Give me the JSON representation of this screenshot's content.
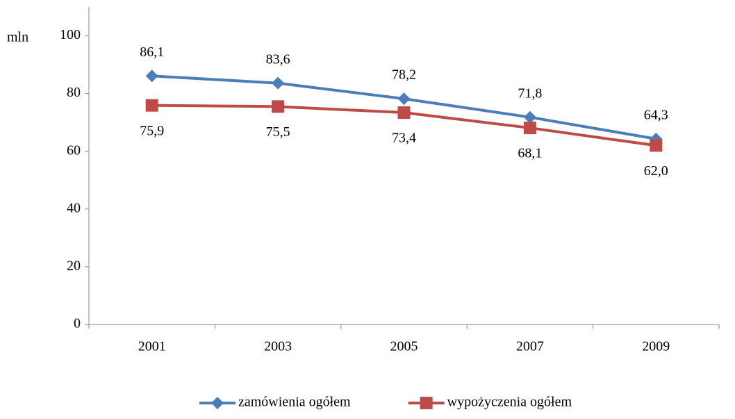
{
  "chart_data": {
    "type": "line",
    "y_label": "mln",
    "categories": [
      "2001",
      "2003",
      "2005",
      "2007",
      "2009"
    ],
    "series": [
      {
        "name": "zamówienia ogółem",
        "color": "#4a7ebb",
        "marker": "diamond",
        "values": [
          86.1,
          83.6,
          78.2,
          71.8,
          64.3
        ],
        "value_labels": [
          "86,1",
          "83,6",
          "78,2",
          "71,8",
          "64,3"
        ]
      },
      {
        "name": "wypożyczenia ogółem",
        "color": "#be4b48",
        "marker": "square",
        "values": [
          75.9,
          75.5,
          73.4,
          68.1,
          62.0
        ],
        "value_labels": [
          "75,9",
          "75,5",
          "73,4",
          "68,1",
          "62,0"
        ]
      }
    ],
    "ylim": [
      0,
      110
    ],
    "yticks": [
      0,
      20,
      40,
      60,
      80,
      100
    ],
    "grid": false,
    "legend": "bottom"
  }
}
